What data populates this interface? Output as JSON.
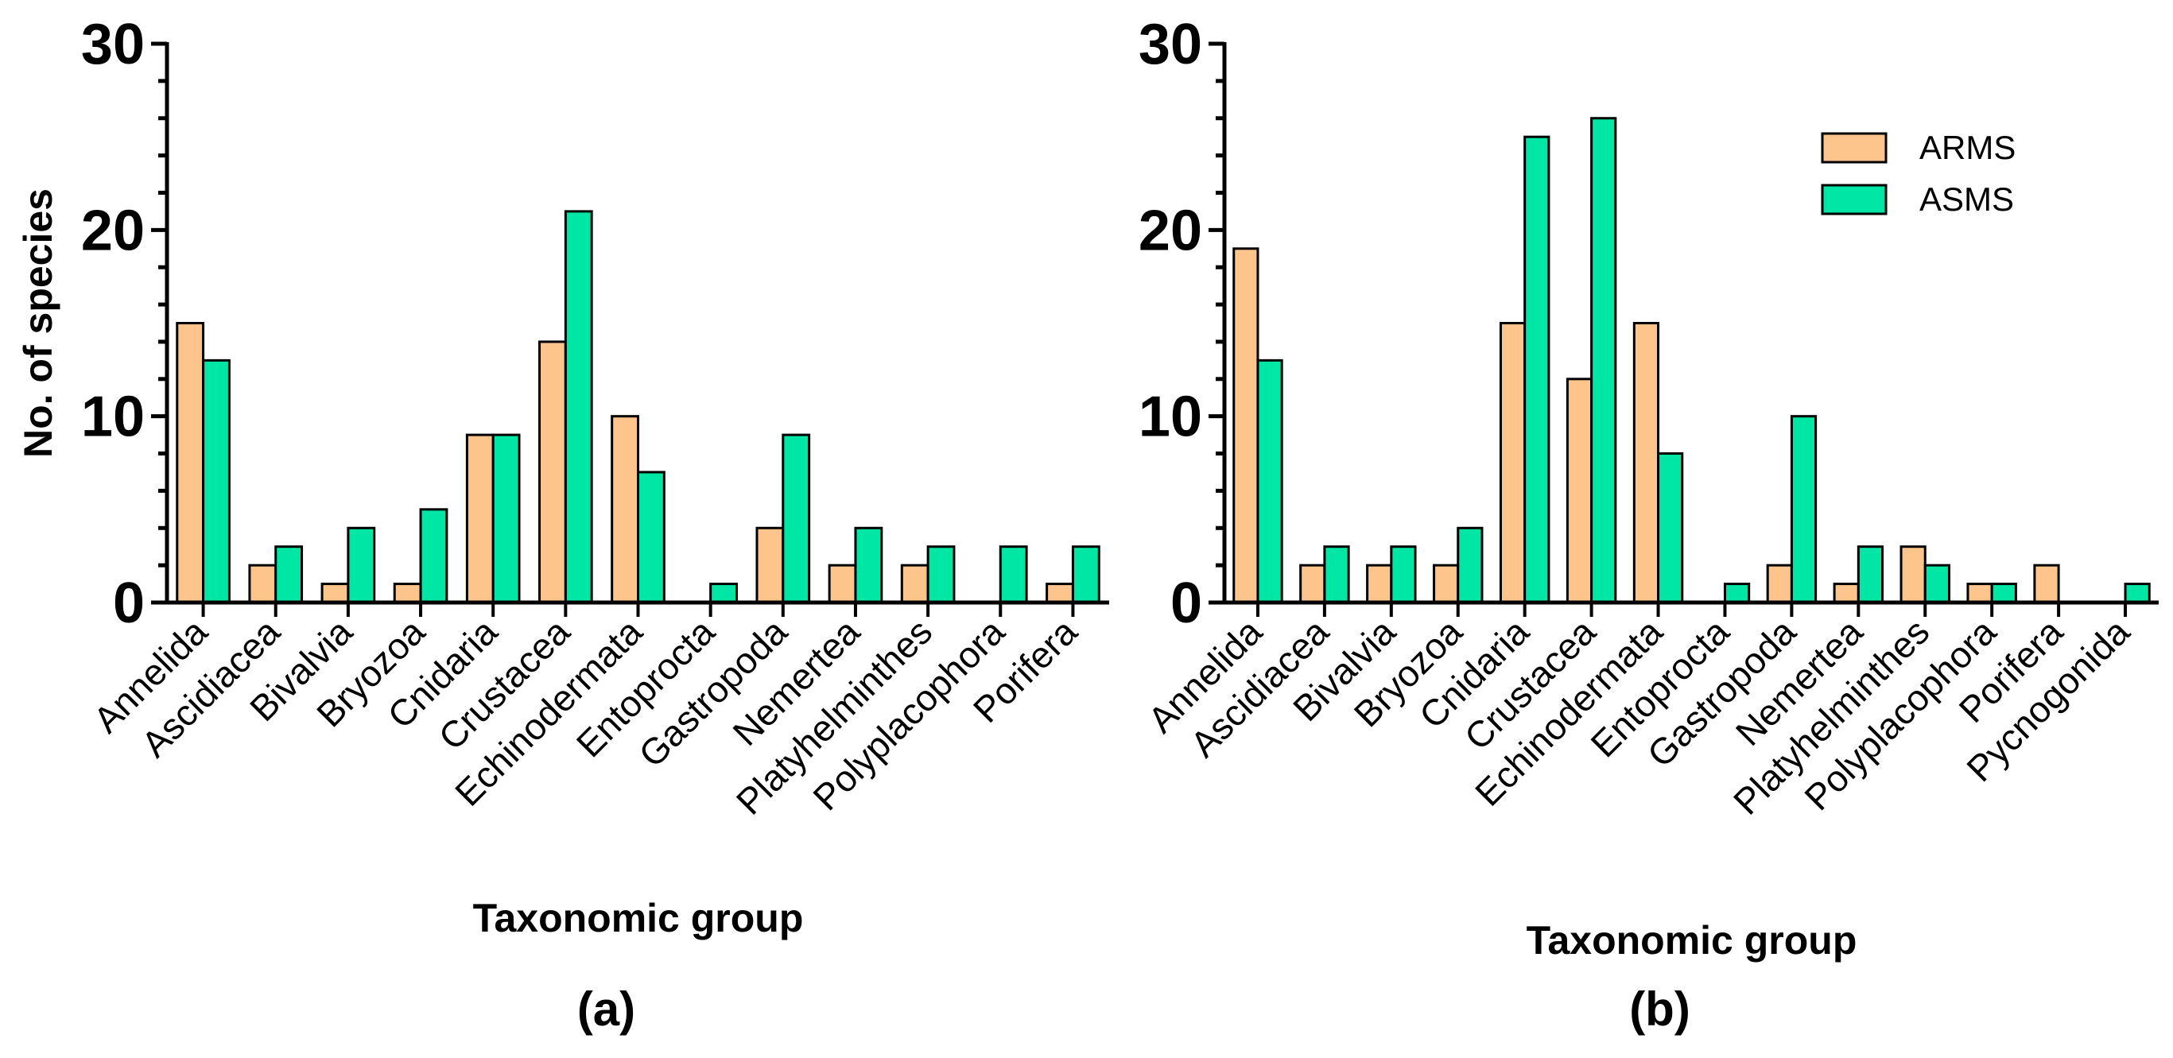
{
  "colors": {
    "ARMS": "#FDC48C",
    "ASMS": "#00E6A4",
    "axis": "#000000"
  },
  "legend": {
    "placement": "top-right of panel (b)",
    "entries": [
      {
        "name": "ARMS",
        "color": "#FDC48C"
      },
      {
        "name": "ASMS",
        "color": "#00E6A4"
      }
    ]
  },
  "chart_data": [
    {
      "type": "bar",
      "panel_label": "(a)",
      "xlabel": "Taxonomic group",
      "ylabel": "No. of species",
      "ylim": [
        0,
        30
      ],
      "yticks": [
        0,
        10,
        20,
        30
      ],
      "categories": [
        "Annelida",
        "Ascidiacea",
        "Bivalvia",
        "Bryozoa",
        "Cnidaria",
        "Crustacea",
        "Echinodermata",
        "Entoprocta",
        "Gastropoda",
        "Nemertea",
        "Platyhelminthes",
        "Polyplacophora",
        "Porifera"
      ],
      "series": [
        {
          "name": "ARMS",
          "values": [
            15,
            2,
            1,
            1,
            9,
            14,
            10,
            0,
            4,
            2,
            2,
            0,
            1
          ]
        },
        {
          "name": "ASMS",
          "values": [
            13,
            3,
            4,
            5,
            9,
            21,
            7,
            1,
            9,
            4,
            3,
            3,
            3
          ]
        }
      ]
    },
    {
      "type": "bar",
      "panel_label": "(b)",
      "xlabel": "Taxonomic group",
      "ylabel": "",
      "ylim": [
        0,
        30
      ],
      "yticks": [
        0,
        10,
        20,
        30
      ],
      "categories": [
        "Annelida",
        "Ascidiacea",
        "Bivalvia",
        "Bryozoa",
        "Cnidaria",
        "Crustacea",
        "Echinodermata",
        "Entoprocta",
        "Gastropoda",
        "Nemertea",
        "Platyhelminthes",
        "Polyplacophora",
        "Porifera",
        "Pycnogonida"
      ],
      "series": [
        {
          "name": "ARMS",
          "values": [
            19,
            2,
            2,
            2,
            15,
            12,
            15,
            0,
            2,
            1,
            3,
            1,
            2,
            0
          ]
        },
        {
          "name": "ASMS",
          "values": [
            13,
            3,
            3,
            4,
            25,
            26,
            8,
            1,
            10,
            3,
            2,
            1,
            0,
            1
          ]
        }
      ]
    }
  ]
}
